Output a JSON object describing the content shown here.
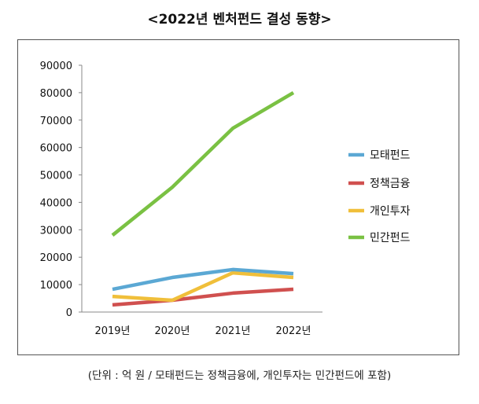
{
  "chart_data": {
    "type": "line",
    "title": "<2022년 벤처펀드 결성 동향>",
    "categories": [
      "2019년",
      "2020년",
      "2021년",
      "2022년"
    ],
    "ylim": [
      0,
      90000
    ],
    "yticks": [
      0,
      10000,
      20000,
      30000,
      40000,
      50000,
      60000,
      70000,
      80000,
      90000
    ],
    "grid": false,
    "legend": "right",
    "series": [
      {
        "name": "모태펀드",
        "color": "#5ba8d4",
        "values": [
          8300,
          12600,
          15500,
          14000
        ]
      },
      {
        "name": "정책금융",
        "color": "#d0504f",
        "values": [
          2600,
          4300,
          6900,
          8300
        ]
      },
      {
        "name": "개인투자",
        "color": "#f0bf3a",
        "values": [
          5700,
          4300,
          14300,
          12600
        ]
      },
      {
        "name": "민간펀드",
        "color": "#7ac143",
        "values": [
          28000,
          45500,
          67000,
          80000
        ]
      }
    ],
    "note": "(단위 : 억 원 / 모태펀드는 정책금융에, 개인투자는 민간펀드에 포함)"
  }
}
